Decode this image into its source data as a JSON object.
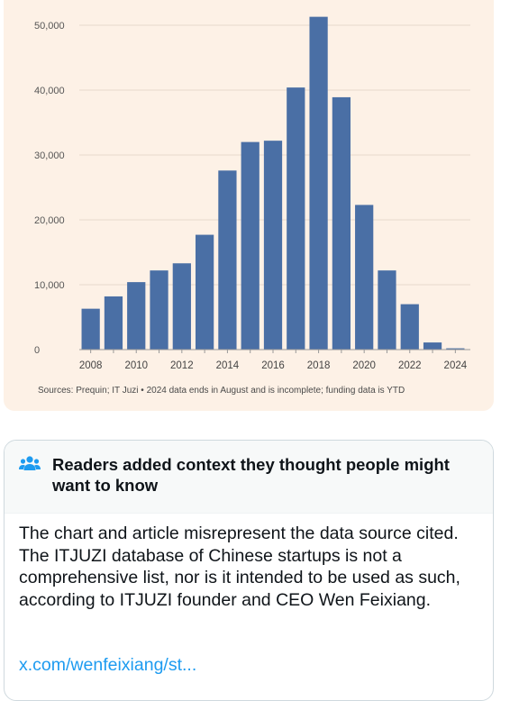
{
  "chart_data": {
    "type": "bar",
    "categories": [
      "2008",
      "2009",
      "2010",
      "2011",
      "2012",
      "2013",
      "2014",
      "2015",
      "2016",
      "2017",
      "2018",
      "2019",
      "2020",
      "2021",
      "2022",
      "2023",
      "2024"
    ],
    "values": [
      6300,
      8200,
      10400,
      12200,
      13300,
      17700,
      27600,
      32000,
      32200,
      40400,
      51300,
      38900,
      22300,
      12200,
      7000,
      1100,
      200
    ],
    "ylim": [
      0,
      50000
    ],
    "yticks": [
      0,
      10000,
      20000,
      30000,
      40000,
      50000
    ],
    "ytick_labels": [
      "0",
      "10,000",
      "20,000",
      "30,000",
      "40,000",
      "50,000"
    ],
    "xtick_labels": [
      "2008",
      "2010",
      "2012",
      "2014",
      "2016",
      "2018",
      "2020",
      "2022",
      "2024"
    ],
    "grid": true,
    "bar_color": "#4a6fa5",
    "source": "Sources: Prequin; IT Juzi • 2024 data ends in August and is incomplete; funding data is YTD"
  },
  "note": {
    "heading": "Readers added context they thought people might want to know",
    "icon": "people-icon",
    "body": "The chart and article misrepresent the data source cited. The ITJUZI database of Chinese startups is not a comprehensive list, nor is it intended to be used as such, according to ITJUZI founder and CEO Wen Feixiang.",
    "link": "x.com/wenfeixiang/st..."
  }
}
